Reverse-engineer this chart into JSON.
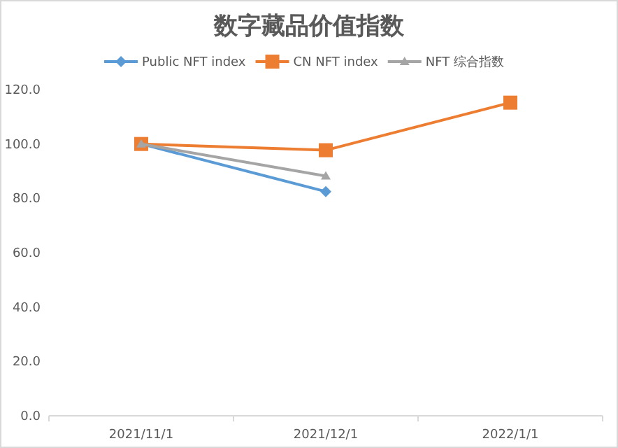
{
  "chart_data": {
    "type": "line",
    "title": "数字藏品价值指数",
    "categories": [
      "2021/11/1",
      "2021/12/1",
      "2022/1/1"
    ],
    "series": [
      {
        "name": "Public NFT index",
        "color": "#5b9bd5",
        "marker": "diamond",
        "values": [
          100,
          82.5,
          null
        ]
      },
      {
        "name": "CN NFT index",
        "color": "#ed7d31",
        "marker": "square",
        "values": [
          100,
          97.7,
          115.2
        ]
      },
      {
        "name": "NFT 综合指数",
        "color": "#a5a5a5",
        "marker": "triangle",
        "values": [
          100,
          88.2,
          null
        ]
      }
    ],
    "ylim": [
      0,
      120
    ],
    "yticks": [
      {
        "value": 0,
        "label": "0.0"
      },
      {
        "value": 20,
        "label": "20.0"
      },
      {
        "value": 40,
        "label": "40.0"
      },
      {
        "value": 60,
        "label": "60.0"
      },
      {
        "value": 80,
        "label": "80.0"
      },
      {
        "value": 100,
        "label": "100.0"
      },
      {
        "value": 120,
        "label": "120.0"
      }
    ],
    "legend": "top"
  }
}
